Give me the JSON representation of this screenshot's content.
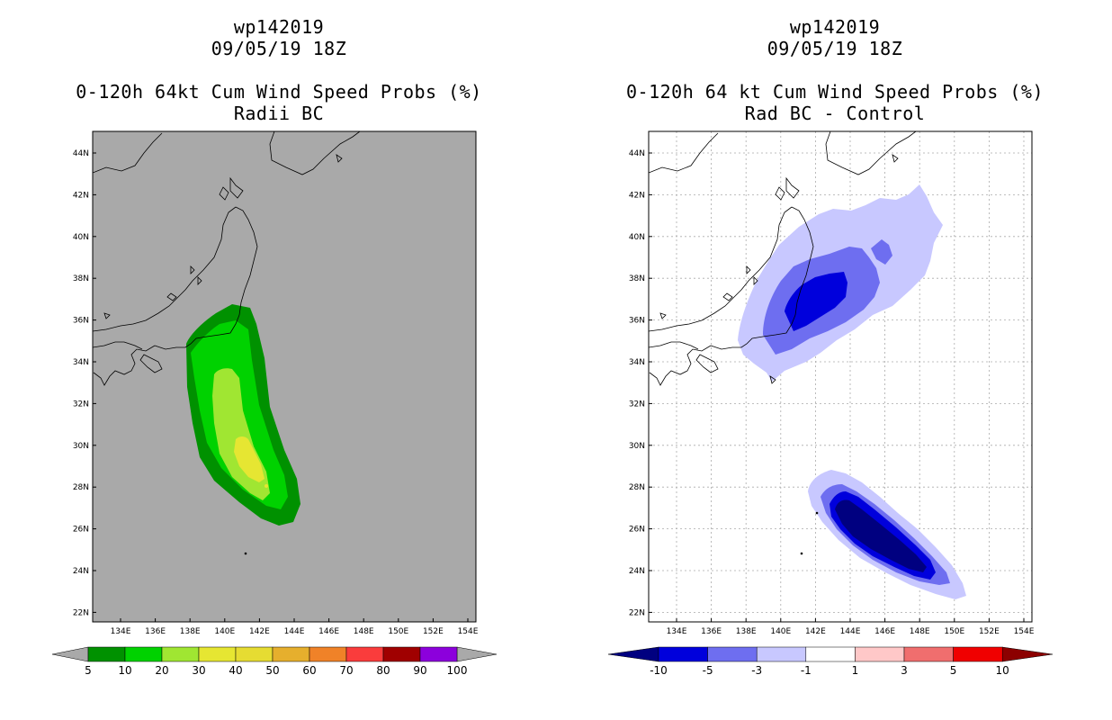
{
  "left_panel": {
    "title_line1": "wp142019",
    "title_line2": "09/05/19 18Z",
    "title_line3": "0-120h 64kt Cum Wind Speed Probs (%)",
    "title_line4": "Radii BC",
    "background_color": "#a9a9a9",
    "colorbar_labels": [
      "5",
      "10",
      "20",
      "30",
      "40",
      "50",
      "60",
      "70",
      "80",
      "90",
      "100"
    ],
    "colorbar_colors": [
      "#009100",
      "#00d200",
      "#a0e632",
      "#e6e632",
      "#e6dc32",
      "#e6af2d",
      "#f08228",
      "#fa3c3c",
      "#a00000",
      "#8c00dc"
    ]
  },
  "right_panel": {
    "title_line1": "wp142019",
    "title_line2": "09/05/19 18Z",
    "title_line3": "0-120h 64 kt Cum Wind Speed Probs (%)",
    "title_line4": "Rad BC - Control",
    "background_color": "#ffffff",
    "colorbar_labels": [
      "-10",
      "-5",
      "-3",
      "-1",
      "1",
      "3",
      "5",
      "10"
    ],
    "colorbar_colors": [
      "#0000dc",
      "#6e6ef0",
      "#c8c8ff",
      "#ffffff",
      "#ffc8c8",
      "#f06e6e",
      "#f00000"
    ]
  },
  "map": {
    "lat_labels": [
      "44N",
      "42N",
      "40N",
      "38N",
      "36N",
      "34N",
      "32N",
      "30N",
      "28N",
      "26N",
      "24N",
      "22N"
    ],
    "lon_labels": [
      "134E",
      "136E",
      "138E",
      "140E",
      "142E",
      "144E",
      "146E",
      "148E",
      "150E",
      "152E",
      "154E"
    ]
  },
  "colors": {
    "low_end_arrow_left": "#a9a9a9",
    "low_end_arrow_right": "#000080",
    "high_end_arrow_right": "#8c0000"
  }
}
